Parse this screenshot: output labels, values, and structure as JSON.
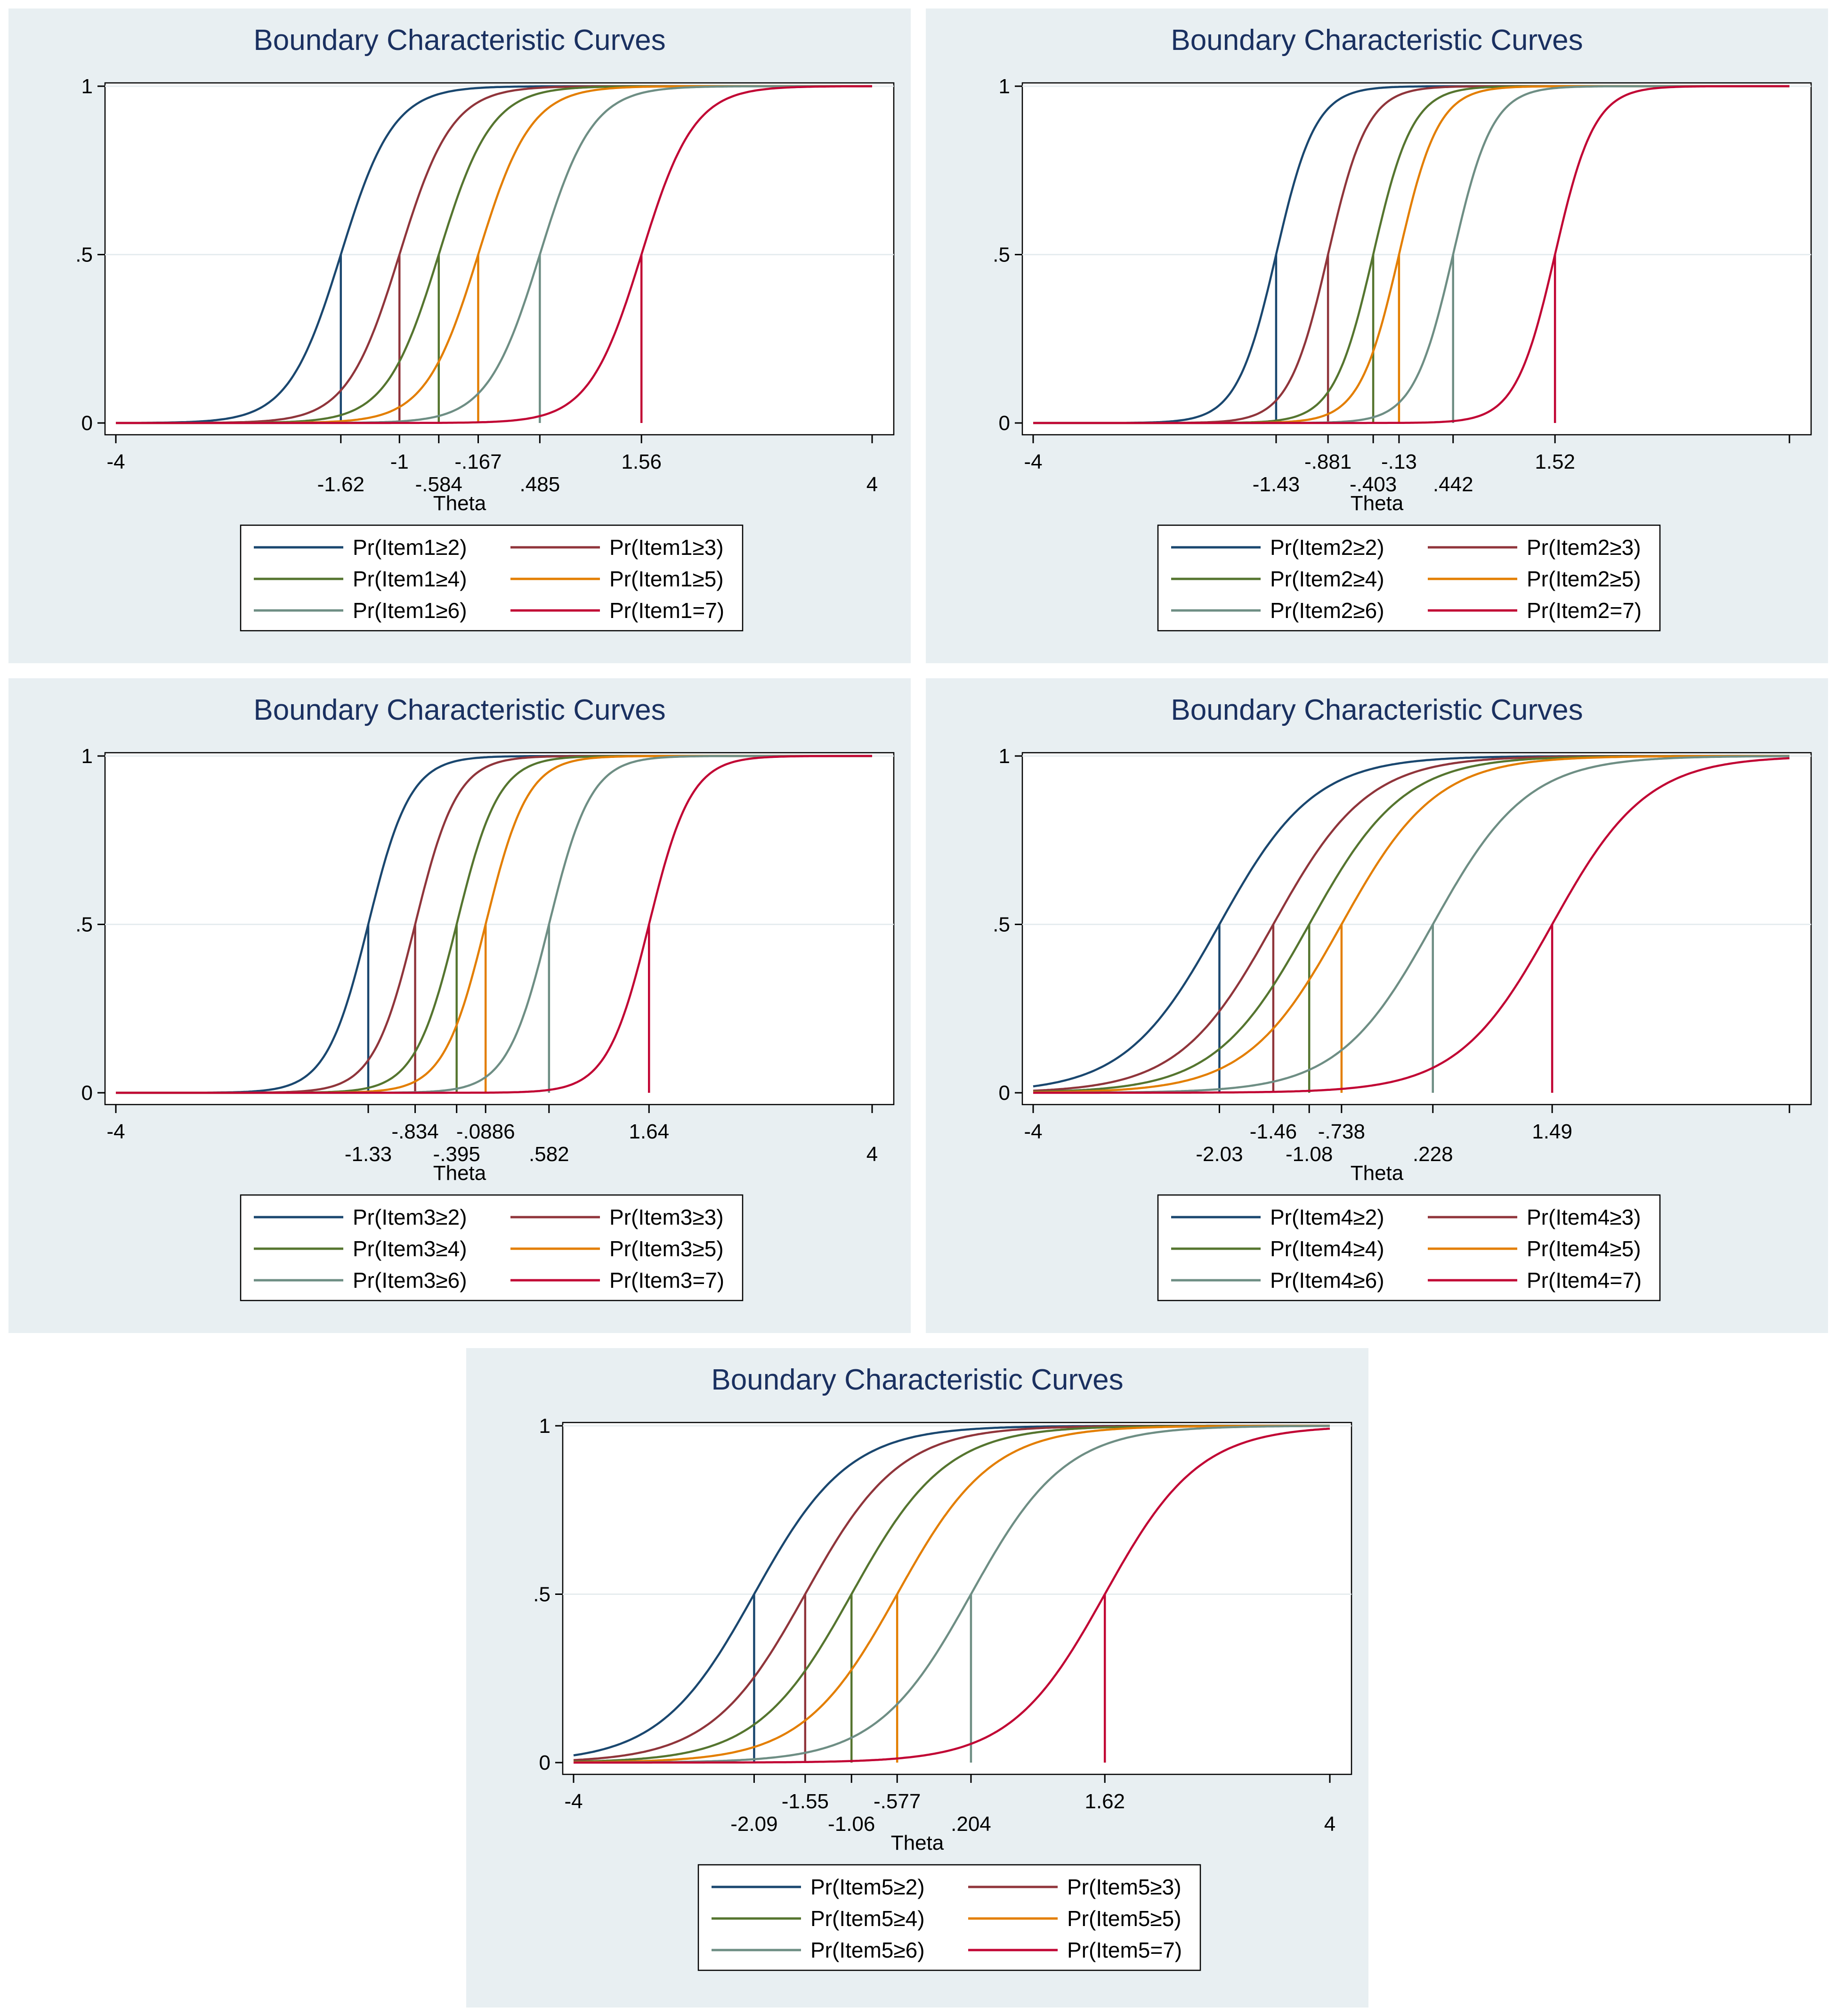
{
  "chart_data": [
    {
      "type": "line",
      "title": "Boundary Characteristic Curves",
      "xlabel": "Theta",
      "ylabel": "",
      "xlim": [
        -4,
        4
      ],
      "ylim": [
        0,
        1
      ],
      "yticks": [
        "0",
        ".5",
        "1"
      ],
      "xticks_top": [
        "-4",
        "-1",
        "-.167",
        "1.56"
      ],
      "xticks_bottom": [
        "-1.62",
        "-.584",
        ".485",
        "4"
      ],
      "x_end": 4,
      "series": [
        {
          "name": "Pr(Item1≥2)",
          "threshold": -1.62,
          "discrimination": 3.6,
          "color": "#1a476f"
        },
        {
          "name": "Pr(Item1≥3)",
          "threshold": -1,
          "discrimination": 3.6,
          "color": "#90353b"
        },
        {
          "name": "Pr(Item1≥4)",
          "threshold": -0.584,
          "discrimination": 3.6,
          "color": "#55752f"
        },
        {
          "name": "Pr(Item1≥5)",
          "threshold": -0.167,
          "discrimination": 3.6,
          "color": "#e37e00"
        },
        {
          "name": "Pr(Item1≥6)",
          "threshold": 0.485,
          "discrimination": 3.6,
          "color": "#6e8e84"
        },
        {
          "name": "Pr(Item1=7)",
          "threshold": 1.56,
          "discrimination": 3.6,
          "color": "#c10534"
        }
      ]
    },
    {
      "type": "line",
      "title": "Boundary Characteristic Curves",
      "xlabel": "Theta",
      "ylabel": "",
      "xlim": [
        -4,
        4
      ],
      "ylim": [
        0,
        1
      ],
      "yticks": [
        "0",
        ".5",
        "1"
      ],
      "xticks_top": [
        "-4",
        "-.881",
        "-.13",
        "1.52"
      ],
      "xticks_bottom": [
        "-1.43",
        "-.403",
        ".442"
      ],
      "x_end": 4,
      "series": [
        {
          "name": "Pr(Item2≥2)",
          "threshold": -1.43,
          "discrimination": 4.8,
          "color": "#1a476f"
        },
        {
          "name": "Pr(Item2≥3)",
          "threshold": -0.881,
          "discrimination": 4.8,
          "color": "#90353b"
        },
        {
          "name": "Pr(Item2≥4)",
          "threshold": -0.403,
          "discrimination": 4.8,
          "color": "#55752f"
        },
        {
          "name": "Pr(Item2≥5)",
          "threshold": -0.13,
          "discrimination": 4.8,
          "color": "#e37e00"
        },
        {
          "name": "Pr(Item2≥6)",
          "threshold": 0.442,
          "discrimination": 4.8,
          "color": "#6e8e84"
        },
        {
          "name": "Pr(Item2=7)",
          "threshold": 1.52,
          "discrimination": 4.8,
          "color": "#c10534"
        }
      ]
    },
    {
      "type": "line",
      "title": "Boundary Characteristic Curves",
      "xlabel": "Theta",
      "ylabel": "",
      "xlim": [
        -4,
        4
      ],
      "ylim": [
        0,
        1
      ],
      "yticks": [
        "0",
        ".5",
        "1"
      ],
      "xticks_top": [
        "-4",
        "-.834",
        "-.0886",
        "1.64"
      ],
      "xticks_bottom": [
        "-1.33",
        "-.395",
        ".582",
        "4"
      ],
      "x_end": 4,
      "series": [
        {
          "name": "Pr(Item3≥2)",
          "threshold": -1.33,
          "discrimination": 4.5,
          "color": "#1a476f"
        },
        {
          "name": "Pr(Item3≥3)",
          "threshold": -0.834,
          "discrimination": 4.5,
          "color": "#90353b"
        },
        {
          "name": "Pr(Item3≥4)",
          "threshold": -0.395,
          "discrimination": 4.5,
          "color": "#55752f"
        },
        {
          "name": "Pr(Item3≥5)",
          "threshold": -0.0886,
          "discrimination": 4.5,
          "color": "#e37e00"
        },
        {
          "name": "Pr(Item3≥6)",
          "threshold": 0.582,
          "discrimination": 4.5,
          "color": "#6e8e84"
        },
        {
          "name": "Pr(Item3=7)",
          "threshold": 1.64,
          "discrimination": 4.5,
          "color": "#c10534"
        }
      ]
    },
    {
      "type": "line",
      "title": "Boundary Characteristic Curves",
      "xlabel": "Theta",
      "ylabel": "",
      "xlim": [
        -4,
        4
      ],
      "ylim": [
        0,
        1
      ],
      "yticks": [
        "0",
        ".5",
        "1"
      ],
      "xticks_top": [
        "-4",
        "-1.46",
        "-.738",
        "1.49"
      ],
      "xticks_bottom": [
        "-2.03",
        "-1.08",
        ".228"
      ],
      "x_end": 4,
      "series": [
        {
          "name": "Pr(Item4≥2)",
          "threshold": -2.03,
          "discrimination": 2.0,
          "color": "#1a476f"
        },
        {
          "name": "Pr(Item4≥3)",
          "threshold": -1.46,
          "discrimination": 2.0,
          "color": "#90353b"
        },
        {
          "name": "Pr(Item4≥4)",
          "threshold": -1.08,
          "discrimination": 2.0,
          "color": "#55752f"
        },
        {
          "name": "Pr(Item4≥5)",
          "threshold": -0.738,
          "discrimination": 2.0,
          "color": "#e37e00"
        },
        {
          "name": "Pr(Item4≥6)",
          "threshold": 0.228,
          "discrimination": 2.0,
          "color": "#6e8e84"
        },
        {
          "name": "Pr(Item4=7)",
          "threshold": 1.49,
          "discrimination": 2.0,
          "color": "#c10534"
        }
      ]
    },
    {
      "type": "line",
      "title": "Boundary Characteristic Curves",
      "xlabel": "Theta",
      "ylabel": "",
      "xlim": [
        -4,
        4
      ],
      "ylim": [
        0,
        1
      ],
      "yticks": [
        "0",
        ".5",
        "1"
      ],
      "xticks_top": [
        "-4",
        "-1.55",
        "-.577",
        "1.62"
      ],
      "xticks_bottom": [
        "-2.09",
        "-1.06",
        ".204",
        "4"
      ],
      "x_end": 4,
      "series": [
        {
          "name": "Pr(Item5≥2)",
          "threshold": -2.09,
          "discrimination": 2.0,
          "color": "#1a476f"
        },
        {
          "name": "Pr(Item5≥3)",
          "threshold": -1.55,
          "discrimination": 2.0,
          "color": "#90353b"
        },
        {
          "name": "Pr(Item5≥4)",
          "threshold": -1.06,
          "discrimination": 2.0,
          "color": "#55752f"
        },
        {
          "name": "Pr(Item5≥5)",
          "threshold": -0.577,
          "discrimination": 2.0,
          "color": "#e37e00"
        },
        {
          "name": "Pr(Item5≥6)",
          "threshold": 0.204,
          "discrimination": 2.0,
          "color": "#6e8e84"
        },
        {
          "name": "Pr(Item5=7)",
          "threshold": 1.62,
          "discrimination": 2.0,
          "color": "#c10534"
        }
      ]
    }
  ]
}
